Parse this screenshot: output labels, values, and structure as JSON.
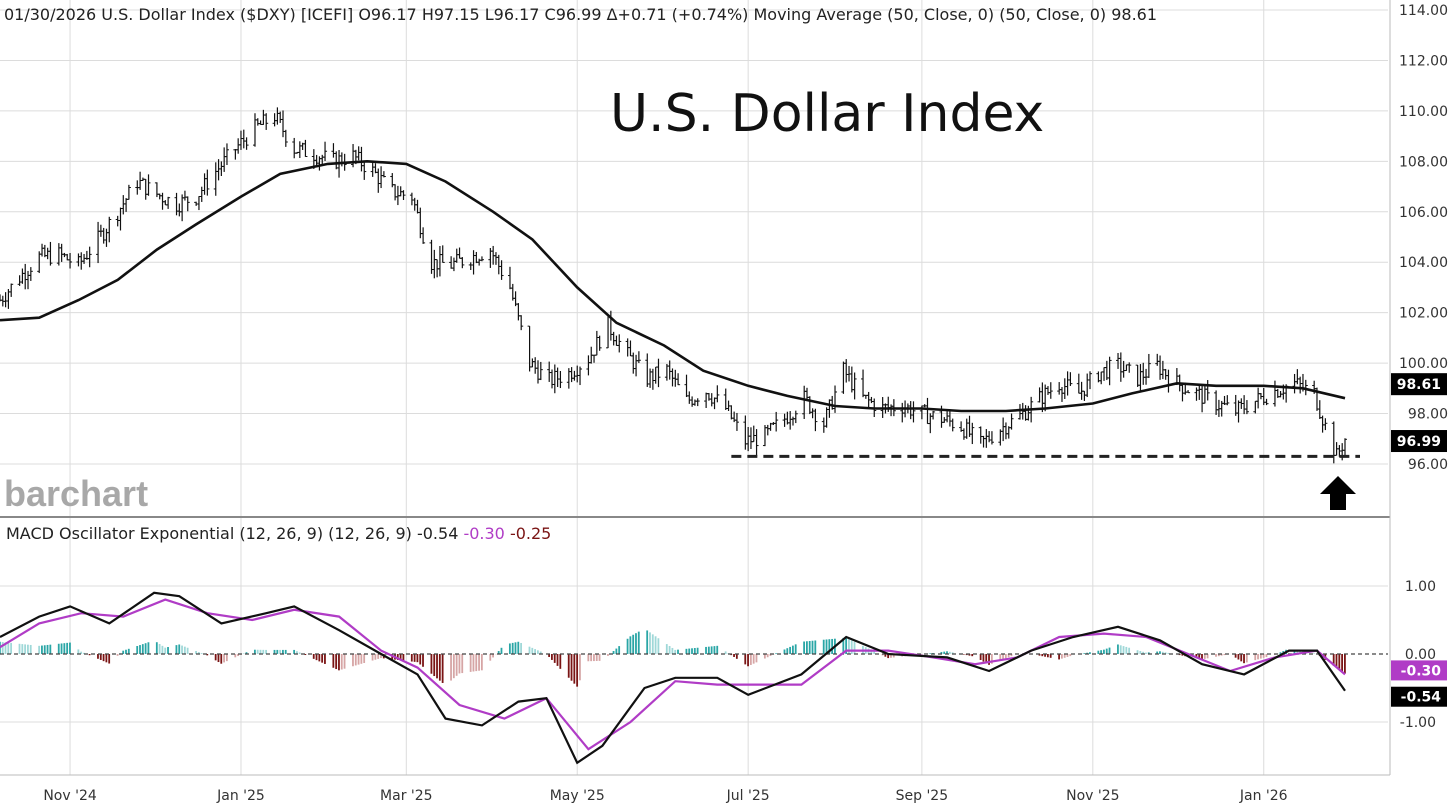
{
  "header": {
    "main": "01/30/2026 U.S. Dollar Index ($DXY) [ICEFI] O96.17 H97.15 L96.17 C96.99 Δ+0.71 (+0.74%) Moving Average (50, Close, 0)  (50, Close, 0) 98.61",
    "macd_prefix": "MACD Oscillator Exponential (12, 26, 9)  (12, 26, 9) -0.54 ",
    "macd_signal_val": "-0.30",
    "macd_hist_val": "-0.25"
  },
  "title": "U.S. Dollar Index",
  "logo": "barchart",
  "colors": {
    "price_bar": "#111111",
    "ma": "#111111",
    "macd": "#111111",
    "signal": "#b03cc6",
    "hist_pos": "#2aa6a6",
    "hist_pos_light": "#9fd8d8",
    "hist_neg": "#7a1414",
    "hist_neg_light": "#d6a5a5",
    "grid": "#dcdcdc",
    "signal_tag": "#b03cc6",
    "tag_black": "#000000"
  },
  "price_tags": {
    "ma": "98.61",
    "close": "96.99"
  },
  "macd_tags": {
    "signal": "-0.30",
    "macd": "-0.54"
  },
  "arrow_icon": "up-arrow-icon",
  "chart_data": {
    "type": "line",
    "x_axis": {
      "start": "2024-10-07",
      "end": "2026-01-30",
      "tick_labels": [
        "Nov '24",
        "Jan '25",
        "Mar '25",
        "May '25",
        "Jul '25",
        "Sep '25",
        "Nov '25",
        "Jan '26"
      ],
      "tick_dates": [
        "2024-11-01",
        "2025-01-01",
        "2025-03-01",
        "2025-05-01",
        "2025-07-01",
        "2025-09-01",
        "2025-11-01",
        "2026-01-01"
      ]
    },
    "price_panel": {
      "ylim": [
        94.0,
        114.0
      ],
      "y_ticks": [
        "114.00",
        "112.00",
        "110.00",
        "108.00",
        "106.00",
        "104.00",
        "102.00",
        "100.00",
        "98.00",
        "96.00"
      ],
      "y_tick_values": [
        114,
        112,
        110,
        108,
        106,
        104,
        102,
        100,
        98,
        96
      ],
      "support_level": 96.3,
      "support_start": "2025-06-25",
      "price_close": [
        [
          "2024-10-07",
          102.5
        ],
        [
          "2024-10-14",
          103.4
        ],
        [
          "2024-10-21",
          104.2
        ],
        [
          "2024-10-28",
          104.3
        ],
        [
          "2024-11-04",
          103.9
        ],
        [
          "2024-11-11",
          104.9
        ],
        [
          "2024-11-18",
          106.0
        ],
        [
          "2024-11-25",
          107.2
        ],
        [
          "2024-12-02",
          106.7
        ],
        [
          "2024-12-09",
          106.3
        ],
        [
          "2024-12-16",
          106.6
        ],
        [
          "2024-12-23",
          107.6
        ],
        [
          "2024-12-30",
          108.5
        ],
        [
          "2025-01-06",
          109.3
        ],
        [
          "2025-01-13",
          109.8
        ],
        [
          "2025-01-20",
          108.5
        ],
        [
          "2025-01-27",
          108.3
        ],
        [
          "2025-02-03",
          108.0
        ],
        [
          "2025-02-10",
          108.2
        ],
        [
          "2025-02-17",
          107.6
        ],
        [
          "2025-02-24",
          106.8
        ],
        [
          "2025-03-03",
          106.6
        ],
        [
          "2025-03-10",
          104.0
        ],
        [
          "2025-03-17",
          103.9
        ],
        [
          "2025-03-24",
          104.2
        ],
        [
          "2025-03-31",
          104.5
        ],
        [
          "2025-04-07",
          103.0
        ],
        [
          "2025-04-14",
          100.0
        ],
        [
          "2025-04-21",
          99.3
        ],
        [
          "2025-04-28",
          99.6
        ],
        [
          "2025-05-05",
          100.2
        ],
        [
          "2025-05-12",
          101.5
        ],
        [
          "2025-05-19",
          100.3
        ],
        [
          "2025-05-26",
          99.4
        ],
        [
          "2025-06-02",
          99.7
        ],
        [
          "2025-06-09",
          98.5
        ],
        [
          "2025-06-16",
          98.9
        ],
        [
          "2025-06-23",
          98.2
        ],
        [
          "2025-06-30",
          96.9
        ],
        [
          "2025-07-07",
          97.1
        ],
        [
          "2025-07-14",
          97.8
        ],
        [
          "2025-07-21",
          98.6
        ],
        [
          "2025-07-28",
          97.6
        ],
        [
          "2025-08-04",
          99.7
        ],
        [
          "2025-08-11",
          98.6
        ],
        [
          "2025-08-18",
          98.2
        ],
        [
          "2025-08-25",
          98.3
        ],
        [
          "2025-09-01",
          98.0
        ],
        [
          "2025-09-08",
          97.8
        ],
        [
          "2025-09-15",
          97.5
        ],
        [
          "2025-09-22",
          96.8
        ],
        [
          "2025-09-29",
          97.4
        ],
        [
          "2025-10-06",
          97.9
        ],
        [
          "2025-10-13",
          98.6
        ],
        [
          "2025-10-20",
          99.2
        ],
        [
          "2025-10-27",
          98.8
        ],
        [
          "2025-11-03",
          99.6
        ],
        [
          "2025-11-10",
          99.9
        ],
        [
          "2025-11-17",
          99.4
        ],
        [
          "2025-11-24",
          99.9
        ],
        [
          "2025-12-01",
          99.2
        ],
        [
          "2025-12-08",
          98.8
        ],
        [
          "2025-12-15",
          98.4
        ],
        [
          "2025-12-22",
          98.1
        ],
        [
          "2025-12-29",
          98.5
        ],
        [
          "2026-01-05",
          98.9
        ],
        [
          "2026-01-12",
          99.2
        ],
        [
          "2026-01-19",
          98.8
        ],
        [
          "2026-01-23",
          97.5
        ],
        [
          "2026-01-27",
          96.3
        ],
        [
          "2026-01-30",
          96.99
        ]
      ],
      "ma50": [
        [
          "2024-10-07",
          101.7
        ],
        [
          "2024-10-21",
          101.8
        ],
        [
          "2024-11-04",
          102.5
        ],
        [
          "2024-11-18",
          103.3
        ],
        [
          "2024-12-02",
          104.5
        ],
        [
          "2024-12-16",
          105.5
        ],
        [
          "2025-01-01",
          106.6
        ],
        [
          "2025-01-15",
          107.5
        ],
        [
          "2025-02-01",
          107.9
        ],
        [
          "2025-02-15",
          108.0
        ],
        [
          "2025-03-01",
          107.9
        ],
        [
          "2025-03-15",
          107.2
        ],
        [
          "2025-04-01",
          106.0
        ],
        [
          "2025-04-15",
          104.9
        ],
        [
          "2025-05-01",
          103.0
        ],
        [
          "2025-05-15",
          101.6
        ],
        [
          "2025-06-01",
          100.7
        ],
        [
          "2025-06-15",
          99.7
        ],
        [
          "2025-07-01",
          99.1
        ],
        [
          "2025-07-15",
          98.7
        ],
        [
          "2025-08-01",
          98.3
        ],
        [
          "2025-08-15",
          98.2
        ],
        [
          "2025-09-01",
          98.2
        ],
        [
          "2025-09-15",
          98.1
        ],
        [
          "2025-10-01",
          98.1
        ],
        [
          "2025-10-15",
          98.2
        ],
        [
          "2025-11-01",
          98.4
        ],
        [
          "2025-11-15",
          98.8
        ],
        [
          "2025-12-01",
          99.2
        ],
        [
          "2025-12-15",
          99.1
        ],
        [
          "2026-01-01",
          99.1
        ],
        [
          "2026-01-15",
          99.0
        ],
        [
          "2026-01-30",
          98.61
        ]
      ]
    },
    "macd_panel": {
      "ylim": [
        -2.0,
        2.0
      ],
      "y_ticks": [
        "1.00",
        "0.00",
        "-1.00"
      ],
      "y_tick_values": [
        1,
        0,
        -1
      ],
      "macd": [
        [
          "2024-10-07",
          0.25
        ],
        [
          "2024-10-21",
          0.55
        ],
        [
          "2024-11-01",
          0.7
        ],
        [
          "2024-11-15",
          0.45
        ],
        [
          "2024-12-01",
          0.9
        ],
        [
          "2024-12-10",
          0.85
        ],
        [
          "2024-12-25",
          0.45
        ],
        [
          "2025-01-10",
          0.6
        ],
        [
          "2025-01-20",
          0.7
        ],
        [
          "2025-02-05",
          0.35
        ],
        [
          "2025-02-20",
          0.0
        ],
        [
          "2025-03-05",
          -0.3
        ],
        [
          "2025-03-15",
          -0.95
        ],
        [
          "2025-03-28",
          -1.05
        ],
        [
          "2025-04-10",
          -0.7
        ],
        [
          "2025-04-20",
          -0.65
        ],
        [
          "2025-05-01",
          -1.6
        ],
        [
          "2025-05-10",
          -1.35
        ],
        [
          "2025-05-25",
          -0.5
        ],
        [
          "2025-06-05",
          -0.35
        ],
        [
          "2025-06-20",
          -0.35
        ],
        [
          "2025-07-01",
          -0.6
        ],
        [
          "2025-07-20",
          -0.3
        ],
        [
          "2025-08-05",
          0.25
        ],
        [
          "2025-08-20",
          0.0
        ],
        [
          "2025-09-10",
          -0.05
        ],
        [
          "2025-09-25",
          -0.25
        ],
        [
          "2025-10-10",
          0.05
        ],
        [
          "2025-10-25",
          0.25
        ],
        [
          "2025-11-10",
          0.4
        ],
        [
          "2025-11-25",
          0.2
        ],
        [
          "2025-12-10",
          -0.15
        ],
        [
          "2025-12-25",
          -0.3
        ],
        [
          "2026-01-10",
          0.05
        ],
        [
          "2026-01-20",
          0.05
        ],
        [
          "2026-01-30",
          -0.54
        ]
      ],
      "signal": [
        [
          "2024-10-07",
          0.1
        ],
        [
          "2024-10-21",
          0.45
        ],
        [
          "2024-11-05",
          0.6
        ],
        [
          "2024-11-20",
          0.55
        ],
        [
          "2024-12-05",
          0.8
        ],
        [
          "2024-12-20",
          0.6
        ],
        [
          "2025-01-05",
          0.5
        ],
        [
          "2025-01-20",
          0.65
        ],
        [
          "2025-02-05",
          0.55
        ],
        [
          "2025-02-20",
          0.05
        ],
        [
          "2025-03-05",
          -0.2
        ],
        [
          "2025-03-20",
          -0.75
        ],
        [
          "2025-04-05",
          -0.95
        ],
        [
          "2025-04-20",
          -0.65
        ],
        [
          "2025-05-05",
          -1.4
        ],
        [
          "2025-05-20",
          -1.0
        ],
        [
          "2025-06-05",
          -0.4
        ],
        [
          "2025-06-20",
          -0.45
        ],
        [
          "2025-07-05",
          -0.45
        ],
        [
          "2025-07-20",
          -0.45
        ],
        [
          "2025-08-05",
          0.05
        ],
        [
          "2025-08-20",
          0.05
        ],
        [
          "2025-09-05",
          -0.05
        ],
        [
          "2025-09-20",
          -0.15
        ],
        [
          "2025-10-05",
          -0.05
        ],
        [
          "2025-10-20",
          0.25
        ],
        [
          "2025-11-05",
          0.3
        ],
        [
          "2025-11-20",
          0.25
        ],
        [
          "2025-12-05",
          0.0
        ],
        [
          "2025-12-20",
          -0.25
        ],
        [
          "2026-01-05",
          -0.05
        ],
        [
          "2026-01-20",
          0.05
        ],
        [
          "2026-01-30",
          -0.3
        ]
      ]
    }
  }
}
